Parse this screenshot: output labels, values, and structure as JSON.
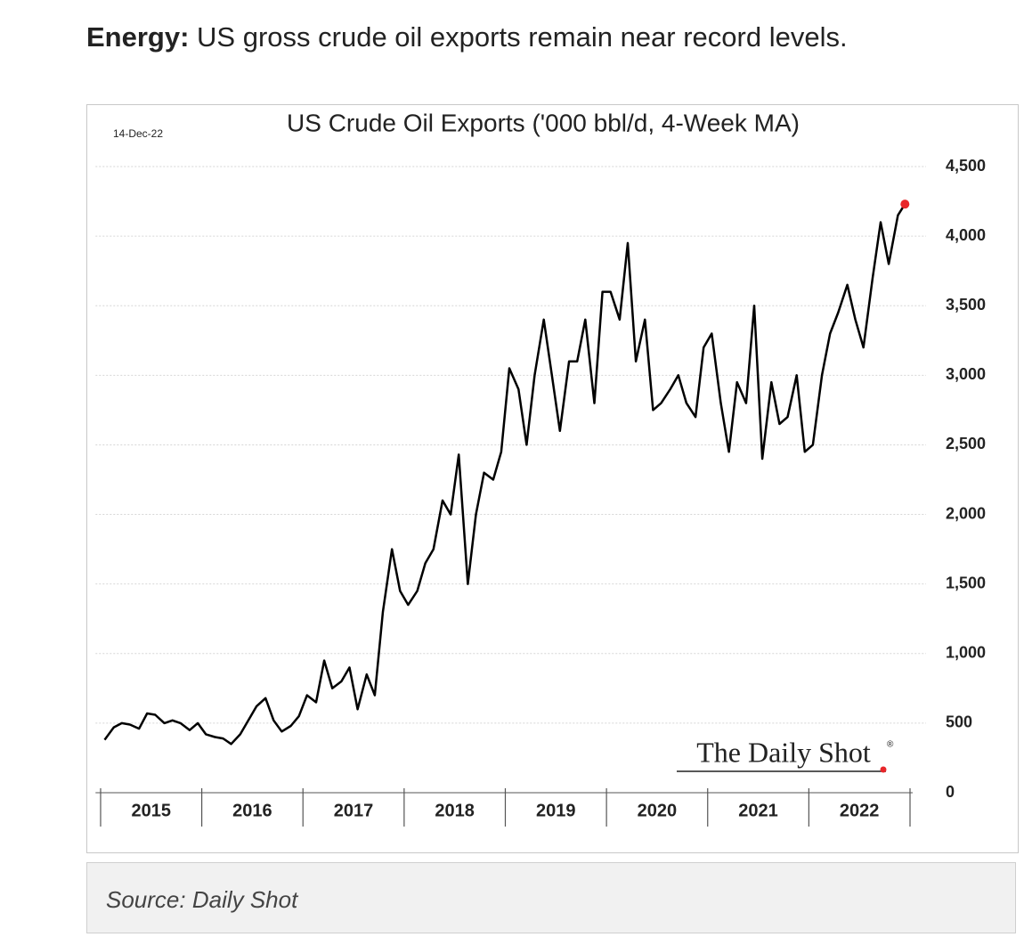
{
  "header": {
    "label": "Energy:",
    "text": "US gross crude oil exports remain near record levels."
  },
  "chart_data": {
    "type": "line",
    "title": "US Crude Oil Exports ('000 bbl/d, 4-Week MA)",
    "date": "14-Dec-22",
    "watermark": "The Daily Shot",
    "watermark_sup": "®",
    "color": "#000000",
    "last_point_color": "#e8262a",
    "grid": true,
    "year_labels": [
      "2015",
      "2016",
      "2017",
      "2018",
      "2019",
      "2020",
      "2021",
      "2022"
    ],
    "xlim": [
      2014.95,
      2023.0
    ],
    "xticks": [
      2015,
      2016,
      2017,
      2018,
      2019,
      2020,
      2021,
      2022,
      2023
    ],
    "ylim": [
      0,
      4500
    ],
    "yticks": [
      0,
      500,
      {
        "value": 1000,
        "label": "1,000"
      },
      {
        "value": 1500,
        "label": "1,500"
      },
      {
        "value": 2000,
        "label": "2,000"
      },
      {
        "value": 2500,
        "label": "2,500"
      },
      {
        "value": 3000,
        "label": "3,000"
      },
      {
        "value": 3500,
        "label": "3,500"
      },
      {
        "value": 4000,
        "label": "4,000"
      },
      {
        "value": 4500,
        "label": "4,500"
      }
    ],
    "x": [
      2015.04,
      2015.13,
      2015.21,
      2015.29,
      2015.38,
      2015.46,
      2015.54,
      2015.63,
      2015.71,
      2015.79,
      2015.88,
      2015.96,
      2016.04,
      2016.13,
      2016.21,
      2016.29,
      2016.38,
      2016.46,
      2016.54,
      2016.63,
      2016.71,
      2016.79,
      2016.88,
      2016.96,
      2017.04,
      2017.13,
      2017.21,
      2017.29,
      2017.38,
      2017.46,
      2017.54,
      2017.63,
      2017.71,
      2017.79,
      2017.88,
      2017.96,
      2018.04,
      2018.13,
      2018.21,
      2018.29,
      2018.38,
      2018.46,
      2018.54,
      2018.63,
      2018.71,
      2018.79,
      2018.88,
      2018.96,
      2019.04,
      2019.13,
      2019.21,
      2019.29,
      2019.38,
      2019.46,
      2019.54,
      2019.63,
      2019.71,
      2019.79,
      2019.88,
      2019.96,
      2020.04,
      2020.13,
      2020.21,
      2020.29,
      2020.38,
      2020.46,
      2020.54,
      2020.63,
      2020.71,
      2020.79,
      2020.88,
      2020.96,
      2021.04,
      2021.13,
      2021.21,
      2021.29,
      2021.38,
      2021.46,
      2021.54,
      2021.63,
      2021.71,
      2021.79,
      2021.88,
      2021.96,
      2022.04,
      2022.13,
      2022.21,
      2022.29,
      2022.38,
      2022.46,
      2022.54,
      2022.63,
      2022.71,
      2022.79,
      2022.88,
      2022.95
    ],
    "values": [
      380,
      470,
      500,
      490,
      460,
      570,
      560,
      500,
      520,
      500,
      450,
      500,
      420,
      400,
      390,
      350,
      420,
      520,
      620,
      680,
      520,
      440,
      480,
      550,
      700,
      650,
      950,
      750,
      800,
      900,
      600,
      850,
      700,
      1300,
      1750,
      1450,
      1350,
      1450,
      1650,
      1750,
      2100,
      2000,
      2430,
      1500,
      2000,
      2300,
      2250,
      2450,
      3050,
      2900,
      2500,
      3000,
      3400,
      3000,
      2600,
      3100,
      3100,
      3400,
      2800,
      3600,
      3600,
      3400,
      3950,
      3100,
      3400,
      2750,
      2800,
      2900,
      3000,
      2800,
      2700,
      3200,
      3300,
      2800,
      2450,
      2950,
      2800,
      3500,
      2400,
      2950,
      2650,
      2700,
      3000,
      2450,
      2500,
      3000,
      3300,
      3450,
      3650,
      3400,
      3200,
      3700,
      4100,
      3800,
      4150,
      4230
    ]
  },
  "caption": "Source: Daily Shot"
}
